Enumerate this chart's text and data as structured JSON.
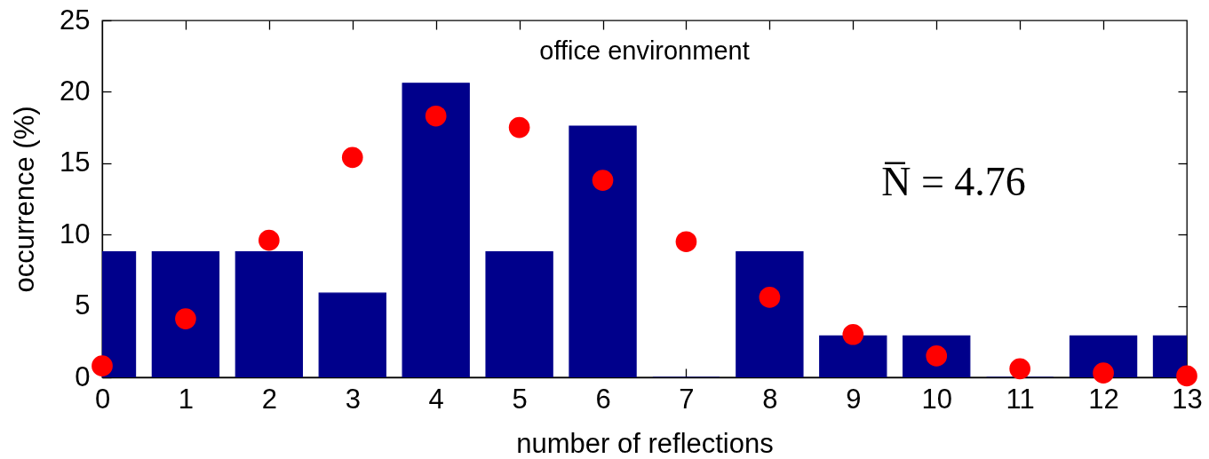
{
  "chart_data": {
    "type": "bar",
    "title": "office environment",
    "xlabel": "number of reflections",
    "ylabel": "occurrence (%)",
    "annotations": [
      "N̅ = 4.76"
    ],
    "x": [
      0,
      1,
      2,
      3,
      4,
      5,
      6,
      7,
      8,
      9,
      10,
      11,
      12,
      13
    ],
    "xlim": [
      0,
      13
    ],
    "xticks": [
      0,
      1,
      2,
      3,
      4,
      5,
      6,
      7,
      8,
      9,
      10,
      11,
      12,
      13
    ],
    "ylim": [
      0,
      25
    ],
    "yticks": [
      0,
      5,
      10,
      15,
      20,
      25
    ],
    "series": [
      {
        "color": "#00008b",
        "values": [
          8.8,
          8.8,
          8.8,
          5.9,
          20.6,
          8.8,
          17.6,
          0,
          8.8,
          2.9,
          2.9,
          0,
          2.9,
          2.9
        ]
      },
      {
        "type": "scatter",
        "color": "#ff0000",
        "marker": "circle",
        "values": [
          0.8,
          4.1,
          9.6,
          15.4,
          18.3,
          17.5,
          13.8,
          9.5,
          5.6,
          3.0,
          1.5,
          0.6,
          0.3,
          0.1
        ]
      }
    ]
  }
}
